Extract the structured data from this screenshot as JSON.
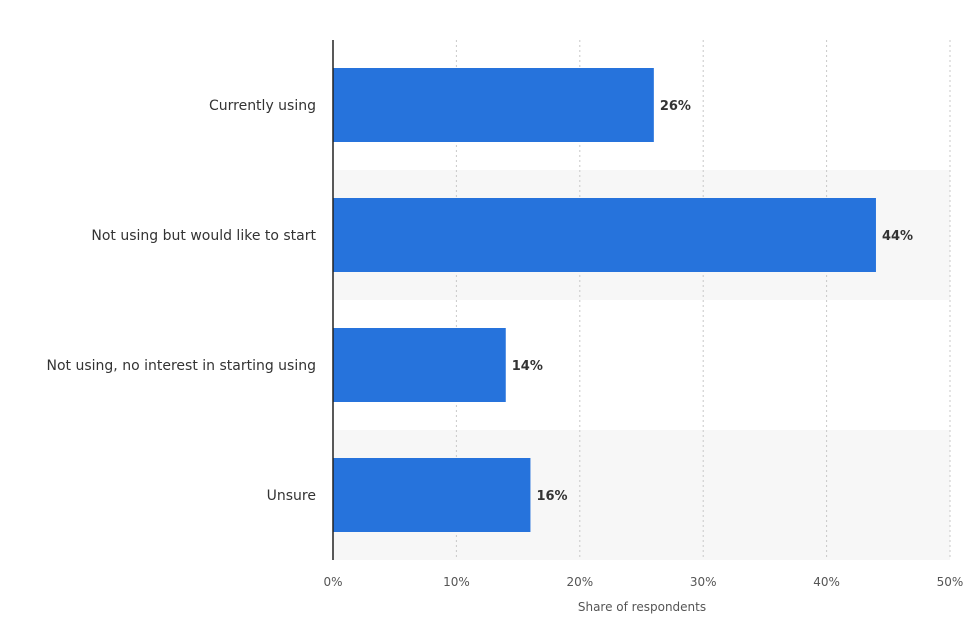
{
  "chart_data": {
    "type": "bar",
    "orientation": "horizontal",
    "categories": [
      "Currently using",
      "Not using but would like to start",
      "Not using, no interest in starting using",
      "Unsure"
    ],
    "values": [
      26,
      44,
      14,
      16
    ],
    "data_labels": [
      "26%",
      "44%",
      "14%",
      "16%"
    ],
    "xlabel": "Share of respondents",
    "ylabel": "",
    "xlim": [
      0,
      50
    ],
    "ticks": [
      0,
      10,
      20,
      30,
      40,
      50
    ],
    "tick_labels": [
      "0%",
      "10%",
      "20%",
      "30%",
      "40%",
      "50%"
    ],
    "grid": "vertical-dotted",
    "colors": {
      "bar": "#2673dc",
      "band": "#f7f7f7",
      "grid": "#c8c8c8",
      "axis": "#222222"
    }
  }
}
